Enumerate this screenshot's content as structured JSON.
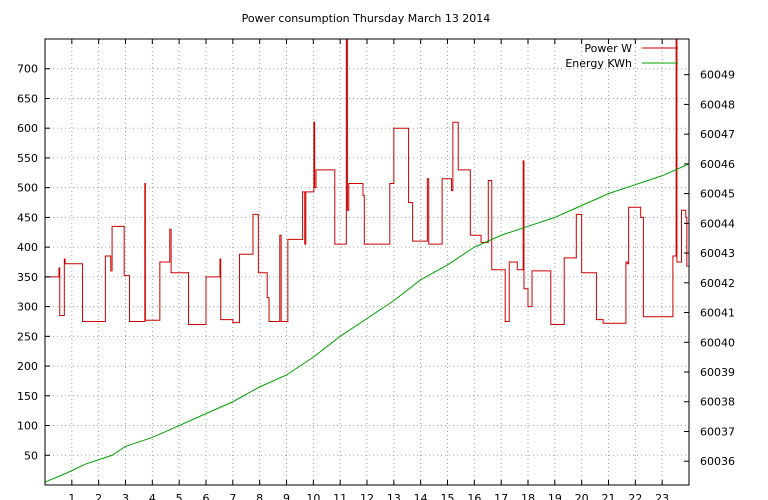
{
  "chart_data": {
    "type": "line",
    "title": "Power consumption Thursday March 13 2014",
    "xlabel": "",
    "ylabel": "",
    "xlim": [
      0,
      24
    ],
    "ylim": [
      0,
      750
    ],
    "y2lim": [
      60035.2,
      60050.2
    ],
    "x_ticks": [
      1,
      2,
      3,
      4,
      5,
      6,
      7,
      8,
      9,
      10,
      11,
      12,
      13,
      14,
      15,
      16,
      17,
      18,
      19,
      20,
      21,
      22,
      23
    ],
    "y_ticks": [
      50,
      100,
      150,
      200,
      250,
      300,
      350,
      400,
      450,
      500,
      550,
      600,
      650,
      700
    ],
    "y2_ticks": [
      60036,
      60037,
      60038,
      60039,
      60040,
      60041,
      60042,
      60043,
      60044,
      60045,
      60046,
      60047,
      60048,
      60049
    ],
    "grid": true,
    "legend_position": "top-right",
    "colors": {
      "power": "#cc0000",
      "energy": "#00a000"
    },
    "series": [
      {
        "name": "Power W",
        "axis": "left",
        "step": true,
        "points": [
          [
            0.0,
            350
          ],
          [
            0.5,
            350
          ],
          [
            0.52,
            365
          ],
          [
            0.55,
            285
          ],
          [
            0.7,
            285
          ],
          [
            0.72,
            380
          ],
          [
            0.75,
            372
          ],
          [
            1.0,
            372
          ],
          [
            1.35,
            372
          ],
          [
            1.4,
            275
          ],
          [
            2.2,
            275
          ],
          [
            2.25,
            385
          ],
          [
            2.4,
            385
          ],
          [
            2.45,
            360
          ],
          [
            2.5,
            435
          ],
          [
            2.9,
            435
          ],
          [
            2.95,
            352
          ],
          [
            3.1,
            352
          ],
          [
            3.15,
            275
          ],
          [
            3.7,
            275
          ],
          [
            3.72,
            507
          ],
          [
            3.74,
            277
          ],
          [
            4.25,
            277
          ],
          [
            4.28,
            375
          ],
          [
            4.6,
            375
          ],
          [
            4.65,
            430
          ],
          [
            4.7,
            357
          ],
          [
            5.3,
            357
          ],
          [
            5.35,
            270
          ],
          [
            5.95,
            270
          ],
          [
            6.0,
            350
          ],
          [
            6.5,
            350
          ],
          [
            6.52,
            380
          ],
          [
            6.55,
            278
          ],
          [
            6.95,
            278
          ],
          [
            7.0,
            273
          ],
          [
            7.2,
            273
          ],
          [
            7.25,
            388
          ],
          [
            7.7,
            388
          ],
          [
            7.75,
            455
          ],
          [
            7.9,
            455
          ],
          [
            7.95,
            357
          ],
          [
            8.25,
            357
          ],
          [
            8.28,
            315
          ],
          [
            8.35,
            275
          ],
          [
            8.7,
            275
          ],
          [
            8.75,
            420
          ],
          [
            8.8,
            275
          ],
          [
            9.0,
            275
          ],
          [
            9.05,
            413
          ],
          [
            9.55,
            413
          ],
          [
            9.6,
            493
          ],
          [
            9.68,
            405
          ],
          [
            9.72,
            493
          ],
          [
            10.0,
            493
          ],
          [
            10.02,
            610
          ],
          [
            10.05,
            500
          ],
          [
            10.1,
            530
          ],
          [
            10.75,
            530
          ],
          [
            10.8,
            405
          ],
          [
            11.2,
            405
          ],
          [
            11.23,
            750
          ],
          [
            11.27,
            462
          ],
          [
            11.32,
            507
          ],
          [
            11.8,
            507
          ],
          [
            11.85,
            487
          ],
          [
            11.9,
            405
          ],
          [
            12.8,
            405
          ],
          [
            12.85,
            507
          ],
          [
            12.95,
            507
          ],
          [
            13.0,
            600
          ],
          [
            13.5,
            600
          ],
          [
            13.55,
            475
          ],
          [
            13.65,
            475
          ],
          [
            13.7,
            410
          ],
          [
            14.2,
            410
          ],
          [
            14.25,
            515
          ],
          [
            14.3,
            405
          ],
          [
            14.75,
            405
          ],
          [
            14.8,
            515
          ],
          [
            15.1,
            515
          ],
          [
            15.15,
            495
          ],
          [
            15.2,
            610
          ],
          [
            15.35,
            610
          ],
          [
            15.4,
            530
          ],
          [
            15.8,
            530
          ],
          [
            15.85,
            420
          ],
          [
            16.2,
            420
          ],
          [
            16.25,
            408
          ],
          [
            16.5,
            408
          ],
          [
            16.52,
            512
          ],
          [
            16.6,
            512
          ],
          [
            16.65,
            362
          ],
          [
            17.1,
            362
          ],
          [
            17.15,
            275
          ],
          [
            17.25,
            275
          ],
          [
            17.3,
            375
          ],
          [
            17.55,
            375
          ],
          [
            17.6,
            362
          ],
          [
            17.8,
            362
          ],
          [
            17.82,
            545
          ],
          [
            17.85,
            330
          ],
          [
            17.95,
            330
          ],
          [
            18.0,
            300
          ],
          [
            18.1,
            300
          ],
          [
            18.15,
            360
          ],
          [
            18.8,
            360
          ],
          [
            18.85,
            270
          ],
          [
            19.3,
            270
          ],
          [
            19.35,
            382
          ],
          [
            19.75,
            382
          ],
          [
            19.8,
            455
          ],
          [
            19.95,
            455
          ],
          [
            20.0,
            357
          ],
          [
            20.5,
            357
          ],
          [
            20.55,
            278
          ],
          [
            20.75,
            278
          ],
          [
            20.8,
            272
          ],
          [
            21.6,
            272
          ],
          [
            21.65,
            375
          ],
          [
            21.7,
            372
          ],
          [
            21.75,
            467
          ],
          [
            22.15,
            467
          ],
          [
            22.2,
            450
          ],
          [
            22.3,
            283
          ],
          [
            23.35,
            283
          ],
          [
            23.4,
            385
          ],
          [
            23.5,
            385
          ],
          [
            23.52,
            750
          ],
          [
            23.55,
            375
          ],
          [
            23.7,
            375
          ],
          [
            23.72,
            462
          ],
          [
            23.85,
            462
          ],
          [
            23.88,
            450
          ],
          [
            23.92,
            368
          ],
          [
            24.0,
            368
          ]
        ]
      },
      {
        "name": "Energy KWh",
        "axis": "right",
        "step": false,
        "points": [
          [
            0.0,
            60035.3
          ],
          [
            0.8,
            60035.6
          ],
          [
            1.5,
            60035.9
          ],
          [
            2.5,
            60036.2
          ],
          [
            3.0,
            60036.5
          ],
          [
            4.0,
            60036.8
          ],
          [
            5.0,
            60037.2
          ],
          [
            6.0,
            60037.6
          ],
          [
            7.0,
            60038.0
          ],
          [
            8.0,
            60038.5
          ],
          [
            9.0,
            60038.9
          ],
          [
            10.0,
            60039.5
          ],
          [
            11.0,
            60040.2
          ],
          [
            12.0,
            60040.8
          ],
          [
            13.0,
            60041.4
          ],
          [
            14.0,
            60042.1
          ],
          [
            15.0,
            60042.6
          ],
          [
            16.0,
            60043.2
          ],
          [
            17.0,
            60043.6
          ],
          [
            18.0,
            60043.9
          ],
          [
            19.0,
            60044.2
          ],
          [
            20.0,
            60044.6
          ],
          [
            21.0,
            60045.0
          ],
          [
            22.0,
            60045.3
          ],
          [
            23.0,
            60045.6
          ],
          [
            24.0,
            60046.0
          ]
        ]
      }
    ]
  }
}
